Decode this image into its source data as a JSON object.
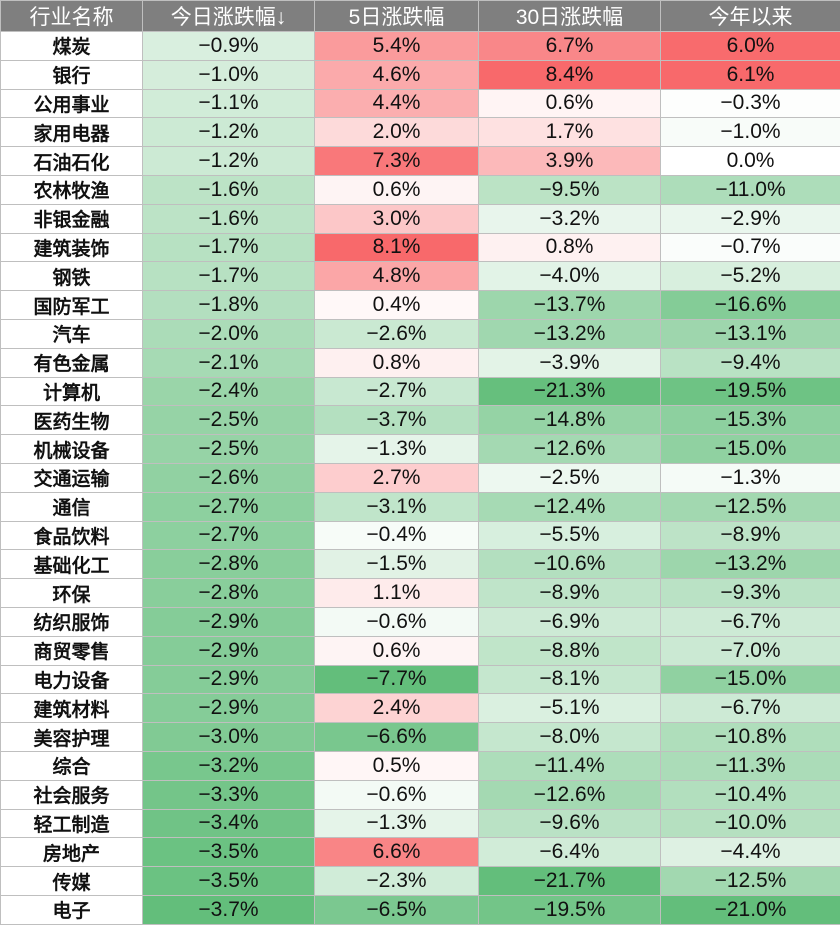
{
  "chart_data": {
    "type": "table",
    "columns": [
      "行业名称",
      "今日涨跌幅↓",
      "5日涨跌幅",
      "30日涨跌幅",
      "今年以来"
    ],
    "colors": {
      "header_bg": "#7f7f7f",
      "header_text": "#ffffff",
      "positive": "#f8696b",
      "negative": "#63be7b",
      "neutral": "#ffffff"
    },
    "rows": [
      {
        "name": "煤炭",
        "values": [
          "-0.9%",
          "5.4%",
          "6.7%",
          "6.0%"
        ]
      },
      {
        "name": "银行",
        "values": [
          "-1.0%",
          "4.6%",
          "8.4%",
          "6.1%"
        ]
      },
      {
        "name": "公用事业",
        "values": [
          "-1.1%",
          "4.4%",
          "0.6%",
          "-0.3%"
        ]
      },
      {
        "name": "家用电器",
        "values": [
          "-1.2%",
          "2.0%",
          "1.7%",
          "-1.0%"
        ]
      },
      {
        "name": "石油石化",
        "values": [
          "-1.2%",
          "7.3%",
          "3.9%",
          "0.0%"
        ]
      },
      {
        "name": "农林牧渔",
        "values": [
          "-1.6%",
          "0.6%",
          "-9.5%",
          "-11.0%"
        ]
      },
      {
        "name": "非银金融",
        "values": [
          "-1.6%",
          "3.0%",
          "-3.2%",
          "-2.9%"
        ]
      },
      {
        "name": "建筑装饰",
        "values": [
          "-1.7%",
          "8.1%",
          "0.8%",
          "-0.7%"
        ]
      },
      {
        "name": "钢铁",
        "values": [
          "-1.7%",
          "4.8%",
          "-4.0%",
          "-5.2%"
        ]
      },
      {
        "name": "国防军工",
        "values": [
          "-1.8%",
          "0.4%",
          "-13.7%",
          "-16.6%"
        ]
      },
      {
        "name": "汽车",
        "values": [
          "-2.0%",
          "-2.6%",
          "-13.2%",
          "-13.1%"
        ]
      },
      {
        "name": "有色金属",
        "values": [
          "-2.1%",
          "0.8%",
          "-3.9%",
          "-9.4%"
        ]
      },
      {
        "name": "计算机",
        "values": [
          "-2.4%",
          "-2.7%",
          "-21.3%",
          "-19.5%"
        ]
      },
      {
        "name": "医药生物",
        "values": [
          "-2.5%",
          "-3.7%",
          "-14.8%",
          "-15.3%"
        ]
      },
      {
        "name": "机械设备",
        "values": [
          "-2.5%",
          "-1.3%",
          "-12.6%",
          "-15.0%"
        ]
      },
      {
        "name": "交通运输",
        "values": [
          "-2.6%",
          "2.7%",
          "-2.5%",
          "-1.3%"
        ]
      },
      {
        "name": "通信",
        "values": [
          "-2.7%",
          "-3.1%",
          "-12.4%",
          "-12.5%"
        ]
      },
      {
        "name": "食品饮料",
        "values": [
          "-2.7%",
          "-0.4%",
          "-5.5%",
          "-8.9%"
        ]
      },
      {
        "name": "基础化工",
        "values": [
          "-2.8%",
          "-1.5%",
          "-10.6%",
          "-13.2%"
        ]
      },
      {
        "name": "环保",
        "values": [
          "-2.8%",
          "1.1%",
          "-8.9%",
          "-9.3%"
        ]
      },
      {
        "name": "纺织服饰",
        "values": [
          "-2.9%",
          "-0.6%",
          "-6.9%",
          "-6.7%"
        ]
      },
      {
        "name": "商贸零售",
        "values": [
          "-2.9%",
          "0.6%",
          "-8.8%",
          "-7.0%"
        ]
      },
      {
        "name": "电力设备",
        "values": [
          "-2.9%",
          "-7.7%",
          "-8.1%",
          "-15.0%"
        ]
      },
      {
        "name": "建筑材料",
        "values": [
          "-2.9%",
          "2.4%",
          "-5.1%",
          "-6.7%"
        ]
      },
      {
        "name": "美容护理",
        "values": [
          "-3.0%",
          "-6.6%",
          "-8.0%",
          "-10.8%"
        ]
      },
      {
        "name": "综合",
        "values": [
          "-3.2%",
          "0.5%",
          "-11.4%",
          "-11.3%"
        ]
      },
      {
        "name": "社会服务",
        "values": [
          "-3.3%",
          "-0.6%",
          "-12.6%",
          "-10.4%"
        ]
      },
      {
        "name": "轻工制造",
        "values": [
          "-3.4%",
          "-1.3%",
          "-9.6%",
          "-10.0%"
        ]
      },
      {
        "name": "房地产",
        "values": [
          "-3.5%",
          "6.6%",
          "-6.4%",
          "-4.4%"
        ]
      },
      {
        "name": "传媒",
        "values": [
          "-3.5%",
          "-2.3%",
          "-21.7%",
          "-12.5%"
        ]
      },
      {
        "name": "电子",
        "values": [
          "-3.7%",
          "-6.5%",
          "-19.5%",
          "-21.0%"
        ]
      }
    ]
  }
}
